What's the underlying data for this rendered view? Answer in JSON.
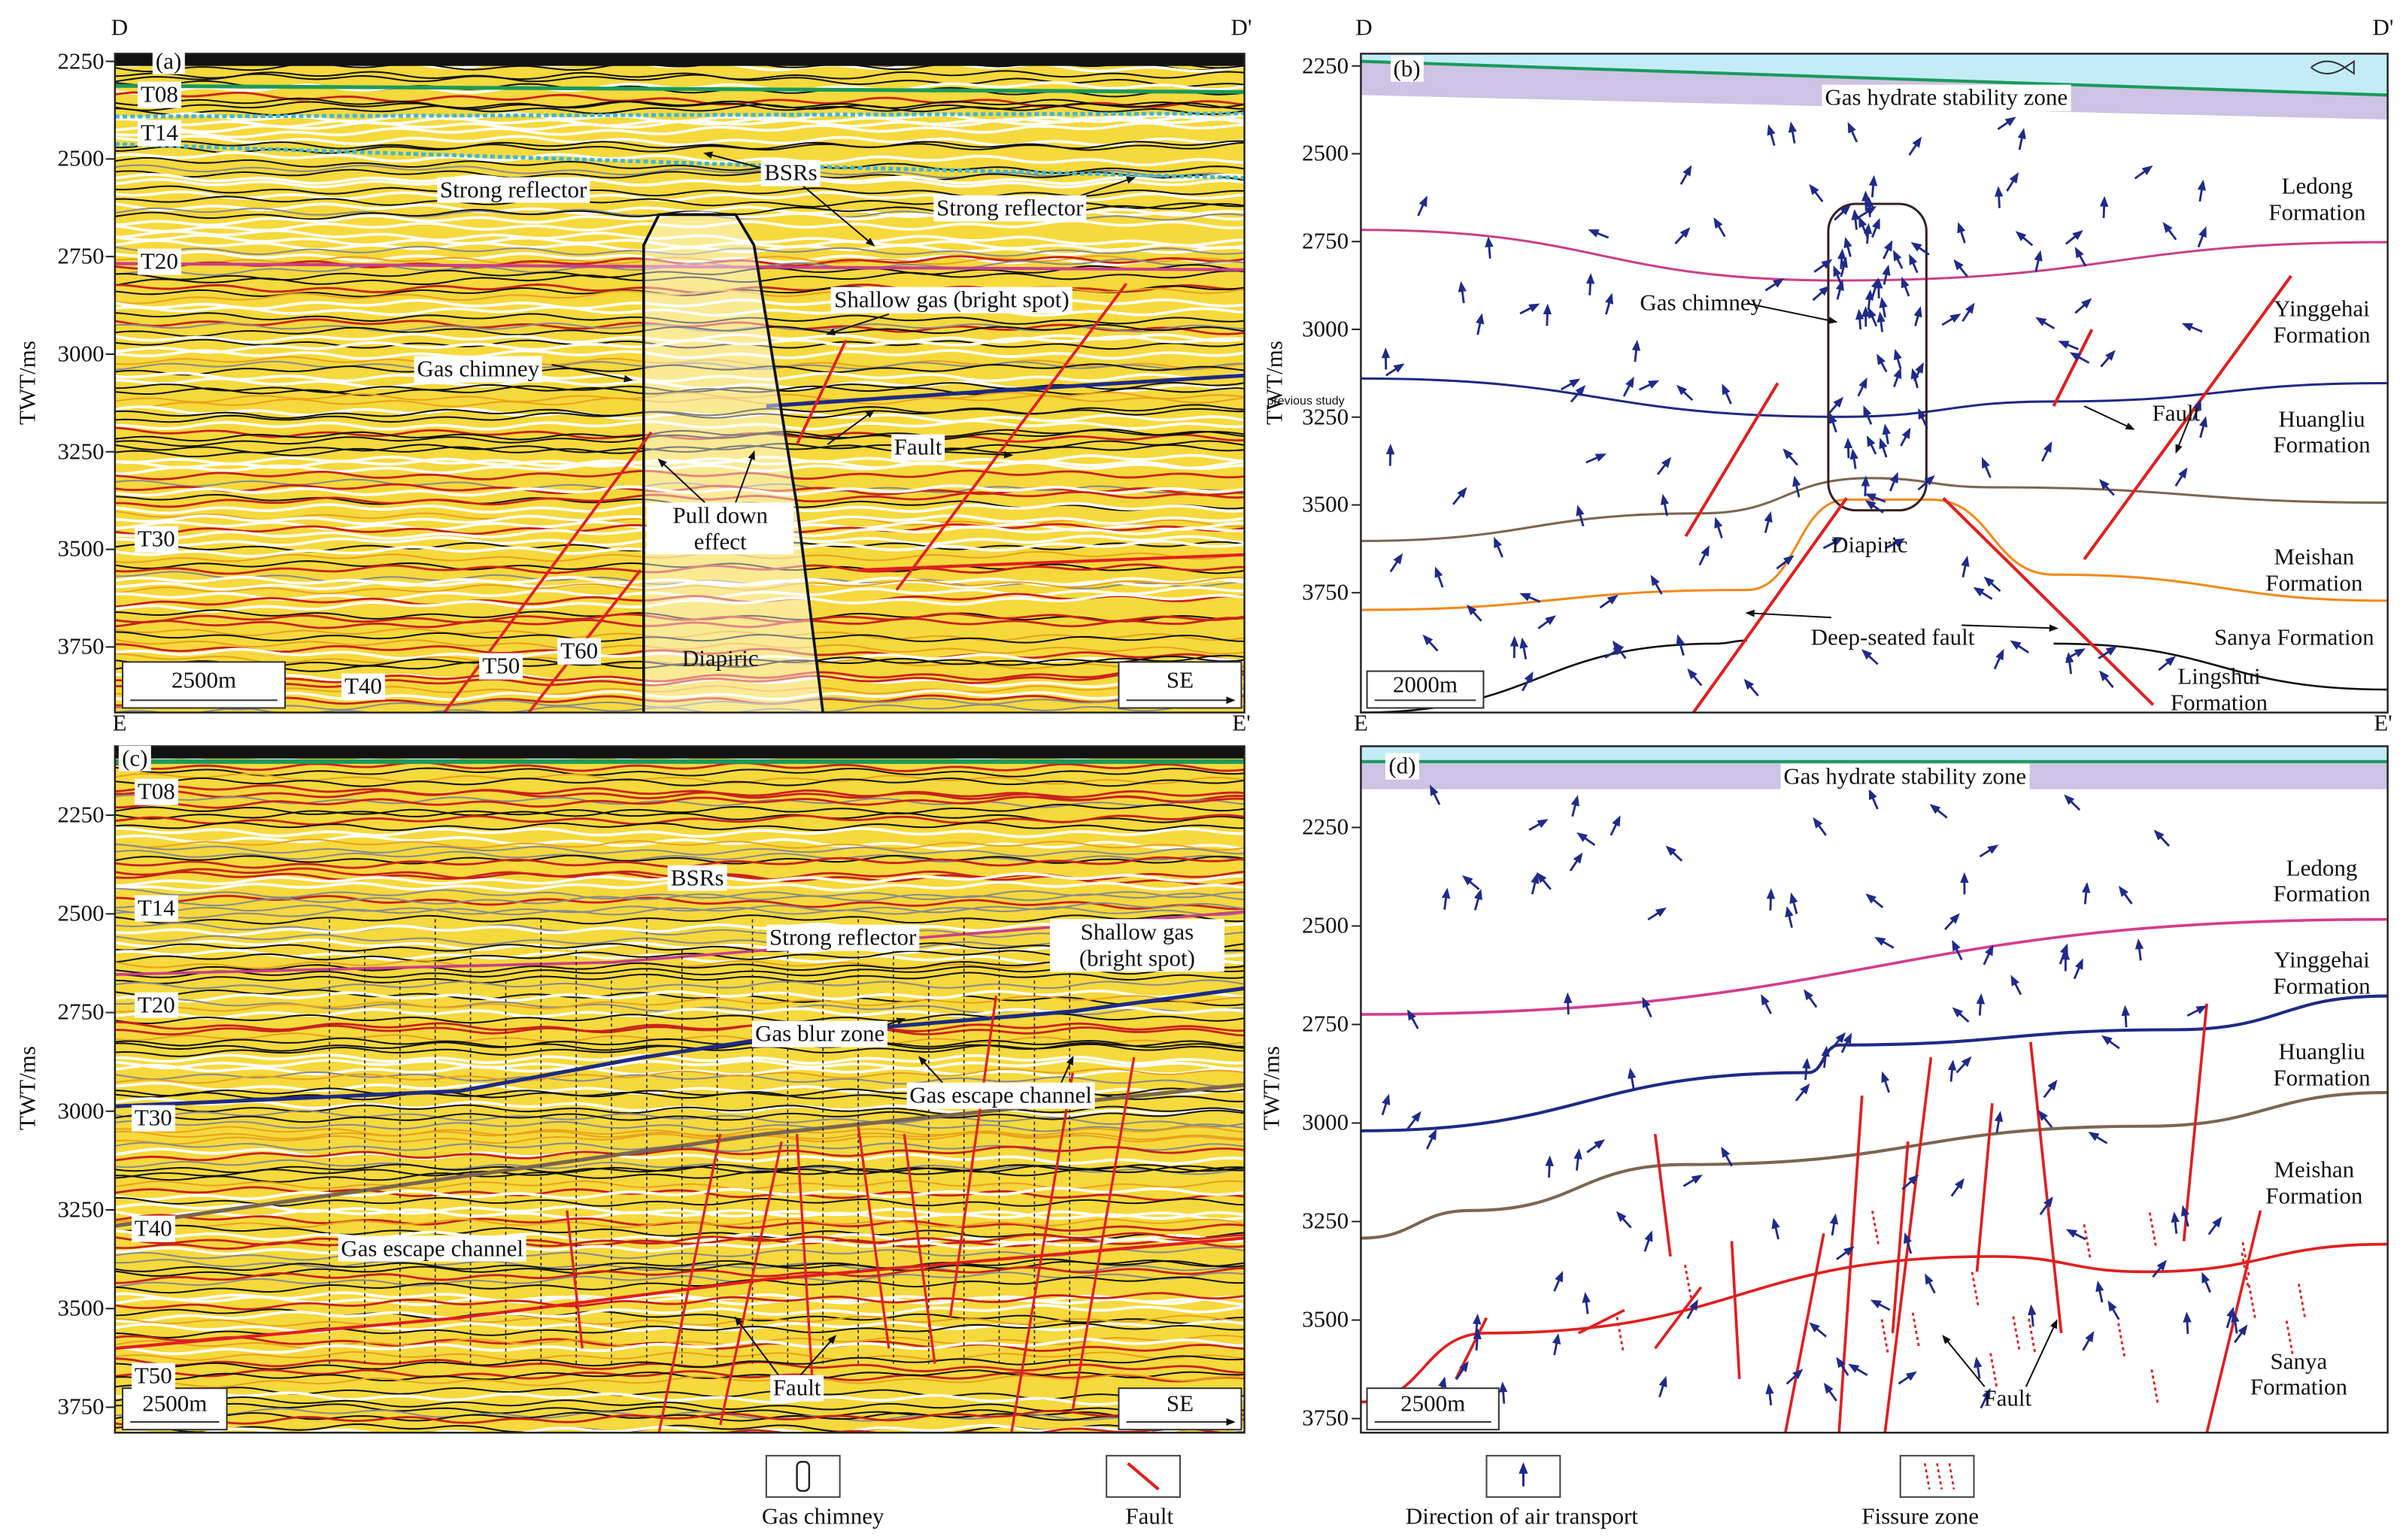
{
  "panels": [
    {
      "label": "(a)",
      "left_corner": "D",
      "right_corner": "D'",
      "axis_title": "TWT/ms",
      "yticks": [
        2250,
        2500,
        2750,
        3000,
        3250,
        3500,
        3750
      ],
      "annotations": [
        "T08",
        "T14",
        "T20",
        "T30",
        "T40",
        "T50",
        "T60",
        "Strong reflector",
        "BSRs",
        "Strong reflector",
        "Shallow gas (bright spot)",
        "Gas chimney",
        "Fault",
        "Pull down effect",
        "Diapiric"
      ],
      "scale_bar": "2500m",
      "direction": "SE"
    },
    {
      "label": "(b)",
      "left_corner": "D",
      "right_corner": "D'",
      "axis_title": "TWT/ms",
      "yticks": [
        2250,
        2500,
        2750,
        3000,
        3250,
        3500,
        3750
      ],
      "annotations": [
        "Gas hydrate stability zone",
        "Ledong Formation",
        "Gas chimney",
        "Yinggehai Formation",
        "Fault",
        "Huangliu Formation",
        "Diapiric",
        "Meishan Formation",
        "Deep-seated fault",
        "Sanya Formation",
        "Lingshui Formation"
      ],
      "overlay_text": "previous study",
      "scale_bar": "2000m"
    },
    {
      "label": "(c)",
      "left_corner": "E",
      "right_corner": "E'",
      "axis_title": "TWT/ms",
      "yticks": [
        2250,
        2500,
        2750,
        3000,
        3250,
        3500,
        3750
      ],
      "annotations": [
        "T08",
        "T14",
        "T20",
        "T30",
        "T40",
        "T50",
        "BSRs",
        "Strong reflector",
        "Shallow gas (bright spot)",
        "Gas blur zone",
        "Gas escape channel",
        "Gas escape channel",
        "Fault"
      ],
      "scale_bar": "2500m",
      "direction": "SE"
    },
    {
      "label": "(d)",
      "left_corner": "E",
      "right_corner": "E'",
      "axis_title": "TWT/ms",
      "yticks": [
        2250,
        2500,
        2750,
        3000,
        3250,
        3500,
        3750
      ],
      "annotations": [
        "Gas hydrate stability zone",
        "Ledong Formation",
        "Yinggehai Formation",
        "Huangliu Formation",
        "Meishan Formation",
        "Sanya Formation",
        "Fault"
      ],
      "scale_bar": "2500m"
    }
  ],
  "legend": [
    "Gas chimney",
    "Fault",
    "Direction of air transport",
    "Fissure zone"
  ]
}
